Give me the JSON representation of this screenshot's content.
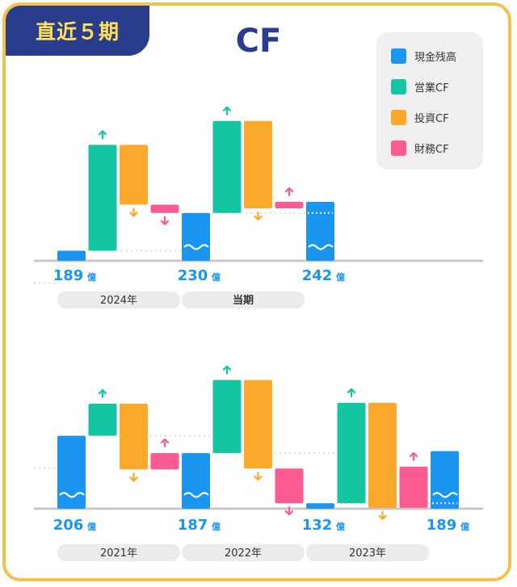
{
  "badge": "直近５期",
  "title": "CF",
  "legend": [
    {
      "label": "現金残高",
      "color": "#1a96f0"
    },
    {
      "label": "営業CF",
      "color": "#13c5a0"
    },
    {
      "label": "投資CF",
      "color": "#fba92c"
    },
    {
      "label": "財務CF",
      "color": "#fb5a93"
    }
  ],
  "unit": "億",
  "chart_data": [
    {
      "type": "waterfall",
      "panel": "top",
      "periods": [
        {
          "label": "2024年",
          "start_cash": 189,
          "operating": 115,
          "investing": -65,
          "financing": -9,
          "end_cash": 230
        },
        {
          "label": "当期",
          "start_cash": 230,
          "operating": 100,
          "investing": -95,
          "financing": 7,
          "end_cash": 242
        }
      ],
      "cash_labels": [
        "189",
        "230",
        "242"
      ]
    },
    {
      "type": "waterfall",
      "panel": "bottom",
      "periods": [
        {
          "label": "2021年",
          "start_cash": 206,
          "operating": 35,
          "investing": -72,
          "financing": 18,
          "end_cash": 187
        },
        {
          "label": "2022年",
          "start_cash": 187,
          "operating": 80,
          "investing": -97,
          "financing": -38,
          "end_cash": 132
        },
        {
          "label": "2023年",
          "start_cash": 132,
          "operating": 110,
          "investing": -115,
          "financing": 45,
          "end_cash": 189
        }
      ],
      "cash_labels": [
        "206",
        "187",
        "132",
        "189"
      ]
    }
  ]
}
